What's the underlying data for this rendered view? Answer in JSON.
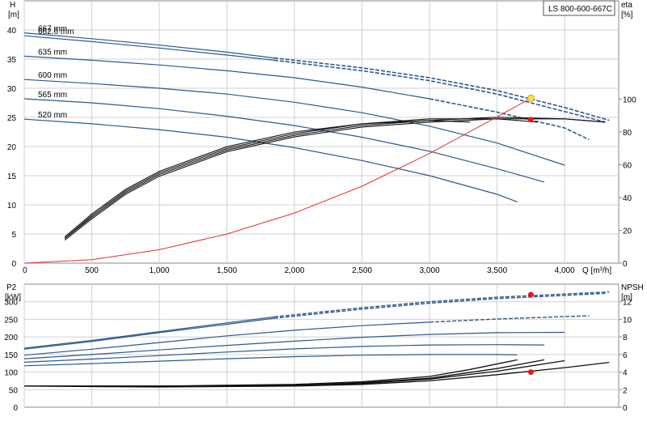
{
  "chart_data": [
    {
      "type": "line",
      "id": "head-efficiency",
      "title": "LS 800-600-667C",
      "y_axis_left": {
        "label_top": "H",
        "label_unit": "[m]",
        "ylim": [
          0,
          45
        ],
        "ticks": [
          0,
          5,
          10,
          15,
          20,
          25,
          30,
          35,
          40
        ]
      },
      "y_axis_right": {
        "label_top": "eta",
        "label_unit": "[%]",
        "ylim": [
          0,
          160
        ],
        "ticks": [
          0,
          20,
          40,
          60,
          80,
          100
        ]
      },
      "x_axis": {
        "label": "Q [m³/h]",
        "xlim": [
          0,
          4400
        ],
        "ticks": [
          0,
          500,
          1000,
          1500,
          2000,
          2500,
          3000,
          3500,
          4000
        ],
        "tick_labels": [
          "0",
          "500",
          "1,000",
          "1,500",
          "2,000",
          "2,500",
          "3,000",
          "3,500",
          "4,000"
        ]
      },
      "head_series": [
        {
          "name": "667 mm",
          "color": "#2b5a8c",
          "solid_x": [
            0,
            500,
            1000,
            1500,
            1850
          ],
          "solid_y": [
            39.5,
            38.5,
            37.4,
            36.2,
            35.2
          ],
          "dash_x": [
            1850,
            2500,
            3000,
            3500,
            4000,
            4330
          ],
          "dash_y": [
            35.2,
            33.5,
            31.8,
            29.6,
            26.7,
            24.5
          ]
        },
        {
          "name": "662.6 mm",
          "color": "#2b5a8c",
          "solid_x": [
            0,
            500,
            1000,
            1500,
            1850
          ],
          "solid_y": [
            39.0,
            38.0,
            36.9,
            35.7,
            34.8
          ],
          "dash_x": [
            1850,
            2500,
            3000,
            3500,
            4000,
            4300
          ],
          "dash_y": [
            34.8,
            33.0,
            31.3,
            29.0,
            26.0,
            24.2
          ]
        },
        {
          "name": "635 mm",
          "color": "#2b5a8c",
          "solid_x": [
            0,
            500,
            1000,
            1500,
            2000,
            2500,
            3000
          ],
          "solid_y": [
            35.5,
            34.8,
            34.0,
            33.0,
            31.8,
            30.2,
            28.2
          ],
          "dash_x": [
            3000,
            3500,
            4000,
            4180
          ],
          "dash_y": [
            28.2,
            25.9,
            23.2,
            21.2
          ]
        },
        {
          "name": "600 mm",
          "color": "#2b5a8c",
          "solid_x": [
            0,
            500,
            1000,
            1500,
            2000,
            2500,
            3000,
            3500,
            4000
          ],
          "solid_y": [
            31.5,
            30.8,
            30.0,
            29.0,
            27.6,
            25.8,
            23.5,
            20.6,
            16.8
          ],
          "dash_x": [],
          "dash_y": []
        },
        {
          "name": "565 mm",
          "color": "#2b5a8c",
          "solid_x": [
            0,
            500,
            1000,
            1500,
            2000,
            2500,
            3000,
            3500,
            3850
          ],
          "solid_y": [
            28.2,
            27.5,
            26.5,
            25.2,
            23.6,
            21.6,
            19.2,
            16.2,
            13.9
          ],
          "dash_x": [],
          "dash_y": []
        },
        {
          "name": "520 mm",
          "color": "#2b5a8c",
          "solid_x": [
            0,
            500,
            1000,
            1500,
            2000,
            2500,
            3000,
            3500,
            3650
          ],
          "solid_y": [
            24.7,
            23.9,
            22.9,
            21.6,
            19.8,
            17.6,
            15.0,
            11.8,
            10.5
          ],
          "dash_x": [],
          "dash_y": []
        }
      ],
      "efficiency_curves": [
        {
          "x": [
            300,
            500,
            750,
            1000,
            1500,
            2000,
            2500,
            3000,
            3300
          ],
          "y": [
            16,
            30,
            45,
            56,
            71,
            80,
            85,
            87,
            86
          ]
        },
        {
          "x": [
            300,
            500,
            750,
            1000,
            1500,
            2000,
            2500,
            3000,
            3500,
            3800
          ],
          "y": [
            15,
            29,
            44,
            55,
            70,
            79,
            85,
            88,
            88,
            86
          ]
        },
        {
          "x": [
            300,
            500,
            750,
            1000,
            1500,
            2000,
            2500,
            3000,
            3500,
            4000,
            4300
          ],
          "y": [
            15,
            28,
            43,
            54,
            69,
            78,
            84,
            87,
            89,
            88,
            86
          ]
        },
        {
          "x": [
            300,
            500,
            750,
            1000,
            1500,
            2000,
            2500,
            3000,
            3500,
            4000,
            4300
          ],
          "y": [
            14,
            27,
            42,
            53,
            68,
            77,
            83,
            86,
            88,
            88,
            86
          ]
        }
      ],
      "system_curve": {
        "color": "#e53030",
        "x": [
          0,
          500,
          1000,
          1500,
          2000,
          2500,
          3000,
          3500,
          3750
        ],
        "y": [
          0,
          0.6,
          2.3,
          5.0,
          8.6,
          13.2,
          18.8,
          25.1,
          28.3
        ]
      },
      "operating_point": {
        "q": 3750,
        "h": 28.3,
        "eta": 87.5
      }
    },
    {
      "type": "line",
      "id": "power-npsh",
      "y_axis_left": {
        "label_top": "P2",
        "label_unit": "[kW]",
        "ylim": [
          0,
          350
        ],
        "ticks": [
          0,
          50,
          100,
          150,
          200,
          250,
          300
        ]
      },
      "y_axis_right": {
        "label_top": "NPSH",
        "label_unit": "[m]",
        "ylim": [
          0,
          14
        ],
        "ticks": [
          0,
          2,
          4,
          6,
          8,
          10,
          12
        ]
      },
      "x_axis": {
        "xlim": [
          0,
          4400
        ]
      },
      "power_series": [
        {
          "name": "667 mm",
          "solid_x": [
            0,
            500,
            1000,
            1500,
            1850
          ],
          "solid_y": [
            168,
            190,
            215,
            240,
            257
          ],
          "dash_x": [
            1850,
            2500,
            3000,
            3500,
            4000,
            4330
          ],
          "dash_y": [
            257,
            283,
            300,
            313,
            322,
            328
          ]
        },
        {
          "name": "662.6 mm",
          "solid_x": [
            0,
            500,
            1000,
            1500,
            1850
          ],
          "solid_y": [
            165,
            187,
            212,
            236,
            253
          ],
          "dash_x": [
            1850,
            2500,
            3000,
            3500,
            4000,
            4300
          ],
          "dash_y": [
            253,
            279,
            296,
            309,
            318,
            324
          ]
        },
        {
          "name": "635 mm",
          "solid_x": [
            0,
            500,
            1000,
            1500,
            2000,
            2500,
            3000
          ],
          "solid_y": [
            148,
            165,
            184,
            203,
            219,
            232,
            242
          ],
          "dash_x": [
            3000,
            3500,
            4000,
            4180
          ],
          "dash_y": [
            242,
            251,
            258,
            260
          ]
        },
        {
          "name": "600 mm",
          "solid_x": [
            0,
            500,
            1000,
            1500,
            2000,
            2500,
            3000,
            3500,
            4000
          ],
          "solid_y": [
            138,
            150,
            163,
            176,
            188,
            199,
            207,
            212,
            213
          ],
          "dash_x": [],
          "dash_y": []
        },
        {
          "name": "565 mm",
          "solid_x": [
            0,
            500,
            1000,
            1500,
            2000,
            2500,
            3000,
            3500,
            3850
          ],
          "solid_y": [
            128,
            137,
            147,
            157,
            166,
            173,
            177,
            178,
            177
          ],
          "dash_x": [],
          "dash_y": []
        },
        {
          "name": "520 mm",
          "solid_x": [
            0,
            500,
            1000,
            1500,
            2000,
            2500,
            3000,
            3500,
            3650
          ],
          "solid_y": [
            118,
            124,
            131,
            138,
            144,
            148,
            150,
            150,
            149
          ],
          "dash_x": [],
          "dash_y": []
        }
      ],
      "npsh_series": [
        {
          "x": [
            0,
            1000,
            2000,
            2500,
            3000,
            3300,
            3650
          ],
          "y": [
            2.4,
            2.4,
            2.6,
            2.9,
            3.5,
            4.3,
            5.4
          ]
        },
        {
          "x": [
            0,
            1000,
            2000,
            2500,
            3000,
            3500,
            3850
          ],
          "y": [
            2.4,
            2.4,
            2.5,
            2.8,
            3.3,
            4.4,
            5.4
          ]
        },
        {
          "x": [
            0,
            1000,
            2000,
            2500,
            3000,
            3500,
            4000
          ],
          "y": [
            2.4,
            2.4,
            2.5,
            2.7,
            3.2,
            4.1,
            5.3
          ]
        },
        {
          "x": [
            0,
            1000,
            2000,
            2500,
            3000,
            3500,
            4000,
            4330
          ],
          "y": [
            2.4,
            2.3,
            2.4,
            2.6,
            3.0,
            3.7,
            4.5,
            5.1
          ]
        }
      ],
      "operating_point_power": {
        "q": 3750,
        "p2": 320
      },
      "operating_point_npsh": {
        "q": 3750,
        "npsh": 4.0
      }
    }
  ]
}
